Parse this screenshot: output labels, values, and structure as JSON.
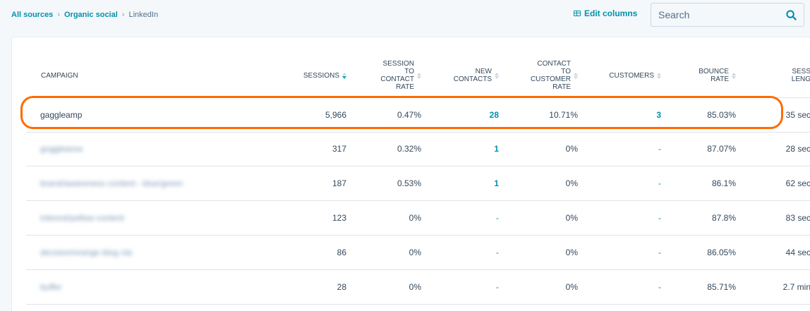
{
  "breadcrumb": {
    "items": [
      {
        "label": "All sources",
        "link": true
      },
      {
        "label": "Organic social",
        "link": true
      },
      {
        "label": "LinkedIn",
        "link": false
      }
    ],
    "separator": "›"
  },
  "toolbar": {
    "edit_columns_label": "Edit columns",
    "search_placeholder": "Search"
  },
  "table": {
    "columns": [
      {
        "key": "campaign",
        "label": "CAMPAIGN"
      },
      {
        "key": "sessions",
        "label": "SESSIONS"
      },
      {
        "key": "session_to_contact_rate",
        "label": "SESSION\nTO\nCONTACT\nRATE"
      },
      {
        "key": "new_contacts",
        "label": "NEW\nCONTACTS"
      },
      {
        "key": "contact_to_customer_rate",
        "label": "CONTACT\nTO\nCUSTOMER\nRATE"
      },
      {
        "key": "customers",
        "label": "CUSTOMERS"
      },
      {
        "key": "bounce_rate",
        "label": "BOUNCE\nRATE"
      },
      {
        "key": "session_length",
        "label": "SESS\nLENG"
      }
    ],
    "rows": [
      {
        "campaign": "gaggleamp",
        "sessions": "5,966",
        "session_to_contact_rate": "0.47%",
        "new_contacts": "28",
        "contact_to_customer_rate": "10.71%",
        "customers": "3",
        "bounce_rate": "85.03%",
        "session_length": "35 sec",
        "blurred": false
      },
      {
        "campaign": "gogglearea",
        "sessions": "317",
        "session_to_contact_rate": "0.32%",
        "new_contacts": "1",
        "contact_to_customer_rate": "0%",
        "customers": "-",
        "bounce_rate": "87.07%",
        "session_length": "28 sec",
        "blurred": true
      },
      {
        "campaign": "brand/awareness content - blue/green",
        "sessions": "187",
        "session_to_contact_rate": "0.53%",
        "new_contacts": "1",
        "contact_to_customer_rate": "0%",
        "customers": "-",
        "bounce_rate": "86.1%",
        "session_length": "62 sec",
        "blurred": true
      },
      {
        "campaign": "interest/yellow content",
        "sessions": "123",
        "session_to_contact_rate": "0%",
        "new_contacts": "-",
        "contact_to_customer_rate": "0%",
        "customers": "-",
        "bounce_rate": "87.8%",
        "session_length": "83 sec",
        "blurred": true
      },
      {
        "campaign": "decision/orange blog cta",
        "sessions": "86",
        "session_to_contact_rate": "0%",
        "new_contacts": "-",
        "contact_to_customer_rate": "0%",
        "customers": "-",
        "bounce_rate": "86.05%",
        "session_length": "44 sec",
        "blurred": true
      },
      {
        "campaign": "buffer",
        "sessions": "28",
        "session_to_contact_rate": "0%",
        "new_contacts": "-",
        "contact_to_customer_rate": "0%",
        "customers": "-",
        "bounce_rate": "85.71%",
        "session_length": "2.7 min",
        "blurred": true
      }
    ]
  },
  "colors": {
    "accent": "#0091ae",
    "highlight": "#ff6b00",
    "text": "#33475b"
  }
}
